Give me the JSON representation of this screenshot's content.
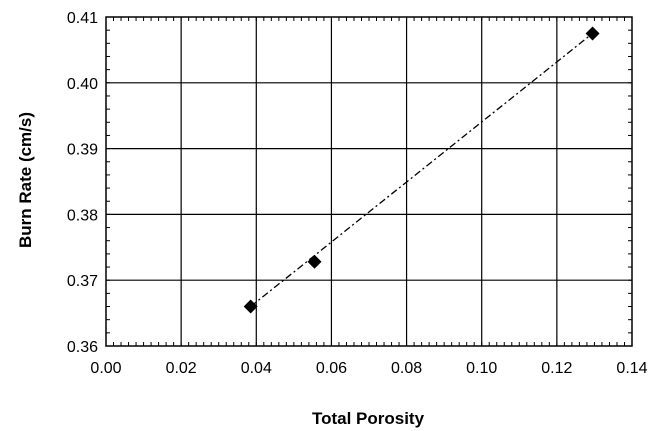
{
  "chart_data": {
    "type": "scatter",
    "title": "",
    "xlabel": "Total Porosity",
    "ylabel": "Burn Rate  (cm/s)",
    "xlim": [
      0.0,
      0.14
    ],
    "ylim": [
      0.36,
      0.41
    ],
    "x_ticks": [
      "0.00",
      "0.02",
      "0.04",
      "0.06",
      "0.08",
      "0.10",
      "0.12",
      "0.14"
    ],
    "y_ticks": [
      "0.36",
      "0.37",
      "0.38",
      "0.39",
      "0.40",
      "0.41"
    ],
    "grid": true,
    "legend": "none",
    "series": [
      {
        "marker": "diamond",
        "color": "#000000",
        "points": [
          {
            "x": 0.0385,
            "y": 0.366
          },
          {
            "x": 0.0555,
            "y": 0.3728
          },
          {
            "x": 0.1295,
            "y": 0.4075
          }
        ]
      }
    ],
    "trendline": {
      "style": "dash-dot",
      "color": "#000000",
      "from": {
        "x": 0.0385,
        "y": 0.366
      },
      "to": {
        "x": 0.1295,
        "y": 0.4075
      }
    }
  }
}
